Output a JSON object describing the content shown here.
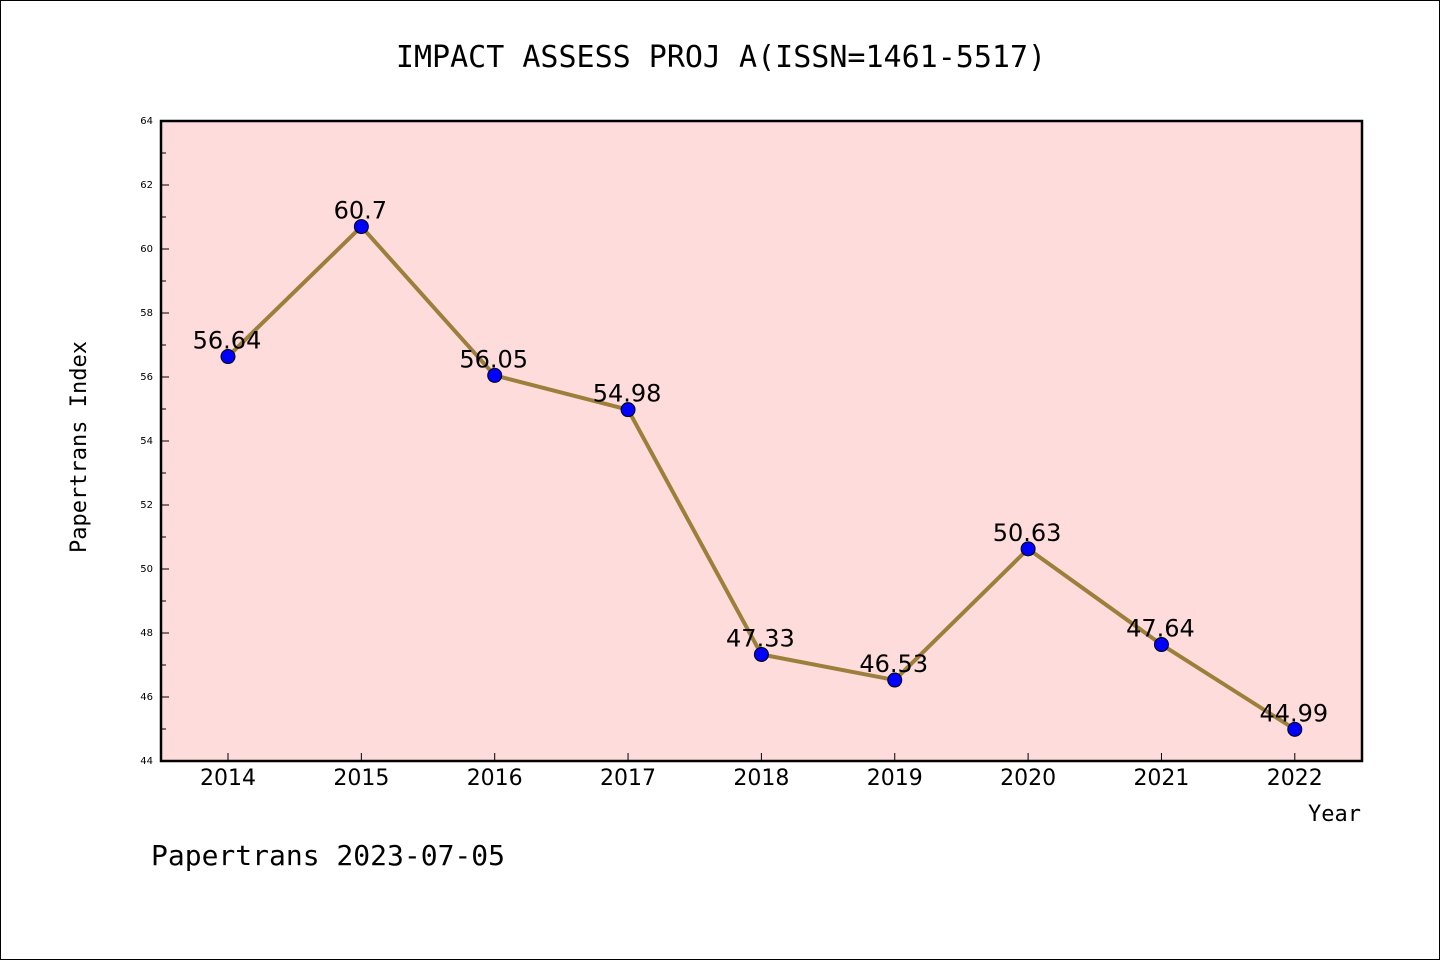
{
  "chart_data": {
    "type": "line",
    "title": "IMPACT ASSESS PROJ A(ISSN=1461-5517)",
    "xlabel": "Year",
    "ylabel": "Papertrans Index",
    "categories": [
      "2014",
      "2015",
      "2016",
      "2017",
      "2018",
      "2019",
      "2020",
      "2021",
      "2022"
    ],
    "series": [
      {
        "values": [
          56.64,
          60.7,
          56.05,
          54.98,
          47.33,
          46.53,
          50.63,
          47.64,
          44.99
        ],
        "labels": [
          "56.64",
          "60.7",
          "56.05",
          "54.98",
          "47.33",
          "46.53",
          "50.63",
          "47.64",
          "44.99"
        ]
      }
    ],
    "ylim": [
      44,
      64
    ],
    "yticks": [
      "44",
      "46",
      "48",
      "50",
      "52",
      "54",
      "56",
      "58",
      "60",
      "62",
      "64"
    ],
    "grid": false,
    "colors": {
      "plot_background": "#ffdcdc",
      "line": "#9b7f3a",
      "marker": "#0000ff"
    }
  },
  "footer": "Papertrans 2023-07-05"
}
